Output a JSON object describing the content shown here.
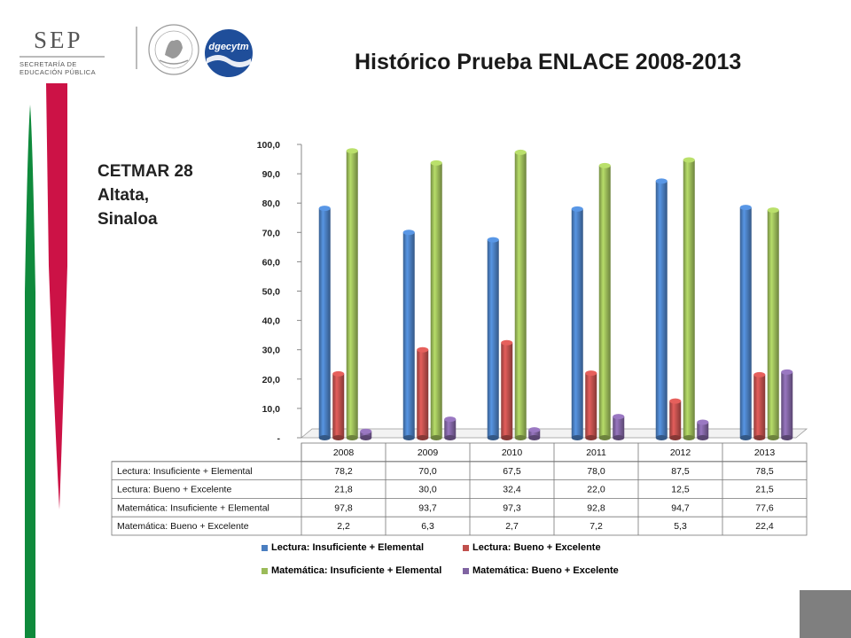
{
  "header": {
    "sep_logo_text": "SEP",
    "sep_logo_subtitle": [
      "SECRETARÍA DE",
      "EDUCACIÓN PÚBLICA"
    ],
    "dgecytm_logo_text": "dgecytm"
  },
  "title": "Histórico Prueba ENLACE 2008-2013",
  "subtitle_lines": [
    "CETMAR 28",
    "Altata,",
    "Sinaloa"
  ],
  "colors": {
    "green_stripe": "#0f8a3c",
    "red_stripe": "#cc1246",
    "corner_block": "#7f7f7f"
  },
  "chart_data": {
    "type": "bar",
    "categories": [
      "2008",
      "2009",
      "2010",
      "2011",
      "2012",
      "2013"
    ],
    "series": [
      {
        "name": "Lectura: Insuficiente + Elemental",
        "color": "#4a7ec0",
        "values": [
          78.2,
          70.0,
          67.5,
          78.0,
          87.5,
          78.5
        ]
      },
      {
        "name": "Lectura: Bueno + Excelente",
        "color": "#c0504d",
        "values": [
          21.8,
          30.0,
          32.4,
          22.0,
          12.5,
          21.5
        ]
      },
      {
        "name": "Matemática: Insuficiente + Elemental",
        "color": "#9bbb59",
        "values": [
          97.8,
          93.7,
          97.3,
          92.8,
          94.7,
          77.6
        ]
      },
      {
        "name": "Matemática: Bueno + Excelente",
        "color": "#8064a2",
        "values": [
          2.2,
          6.3,
          2.7,
          7.2,
          5.3,
          22.4
        ]
      }
    ],
    "value_labels": [
      [
        "78,2",
        "70,0",
        "67,5",
        "78,0",
        "87,5",
        "78,5"
      ],
      [
        "21,8",
        "30,0",
        "32,4",
        "22,0",
        "12,5",
        "21,5"
      ],
      [
        "97,8",
        "93,7",
        "97,3",
        "92,8",
        "94,7",
        "77,6"
      ],
      [
        "2,2",
        "6,3",
        "2,7",
        "7,2",
        "5,3",
        "22,4"
      ]
    ],
    "ylim": [
      0,
      100
    ],
    "yticks": [
      0,
      10,
      20,
      30,
      40,
      50,
      60,
      70,
      80,
      90,
      100
    ],
    "ytick_labels": [
      "-",
      "10,0",
      "20,0",
      "30,0",
      "40,0",
      "50,0",
      "60,0",
      "70,0",
      "80,0",
      "90,0",
      "100,0"
    ],
    "grid": false,
    "data_table": true,
    "legend_position": "bottom",
    "xlabel": "",
    "ylabel": ""
  }
}
